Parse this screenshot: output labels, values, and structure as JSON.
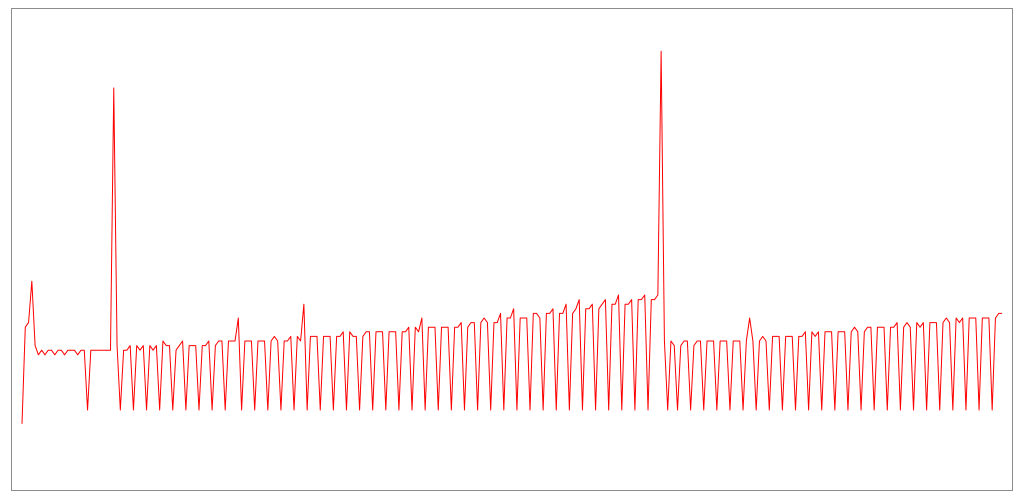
{
  "chart_data": {
    "type": "line",
    "title": "",
    "xlabel": "",
    "ylabel": "",
    "grid": false,
    "legend": "none",
    "ylim": [
      0,
      1
    ],
    "series_color": "#ff0000",
    "series": [
      {
        "x": [
          0,
          1,
          2,
          3,
          4,
          5,
          6,
          7,
          8,
          9,
          10,
          11,
          12,
          13,
          14,
          15,
          16,
          17,
          18,
          19,
          20,
          21,
          22,
          23,
          24,
          25,
          26,
          27,
          28,
          29,
          30,
          31,
          32,
          33,
          34,
          35,
          36,
          37,
          38,
          39,
          40,
          41,
          42,
          43,
          44,
          45,
          46,
          47,
          48,
          49,
          50,
          51,
          52,
          53,
          54,
          55,
          56,
          57,
          58,
          59,
          60,
          61,
          62,
          63,
          64,
          65,
          66,
          67,
          68,
          69,
          70,
          71,
          72,
          73,
          74,
          75,
          76,
          77,
          78,
          79,
          80,
          81,
          82,
          83,
          84,
          85,
          86,
          87,
          88,
          89,
          90,
          91,
          92,
          93,
          94,
          95,
          96,
          97,
          98,
          99,
          100,
          101,
          102,
          103,
          104,
          105,
          106,
          107,
          108,
          109,
          110,
          111,
          112,
          113,
          114,
          115,
          116,
          117,
          118,
          119,
          120,
          121,
          122,
          123,
          124,
          125,
          126,
          127,
          128,
          129,
          130,
          131,
          132,
          133,
          134,
          135,
          136,
          137,
          138,
          139,
          140,
          141,
          142,
          143,
          144,
          145,
          146,
          147,
          148,
          149,
          150,
          151,
          152,
          153,
          154,
          155,
          156,
          157,
          158,
          159,
          160,
          161,
          162,
          163,
          164,
          165,
          166,
          167,
          168,
          169,
          170,
          171,
          172,
          173,
          174,
          175,
          176,
          177,
          178,
          179,
          180,
          181,
          182,
          183,
          184,
          185,
          186,
          187,
          188,
          189,
          190,
          191,
          192,
          193,
          194,
          195,
          196,
          197,
          198,
          199,
          200,
          201,
          202,
          203,
          204,
          205,
          206,
          207,
          208,
          209,
          210,
          211,
          212,
          213,
          214,
          215,
          216,
          217,
          218,
          219,
          220,
          221,
          222,
          223,
          224,
          225,
          226,
          227,
          228,
          229,
          230,
          231,
          232,
          233,
          234,
          235,
          236,
          237,
          238,
          239,
          240,
          241,
          242,
          243,
          244,
          245,
          246,
          247,
          248,
          249,
          250,
          251,
          252,
          253,
          254,
          255,
          256,
          257,
          258,
          259,
          260,
          261,
          262,
          263,
          264,
          265,
          266,
          267,
          268,
          269,
          270,
          271,
          272,
          273,
          274,
          275,
          276,
          277,
          278,
          279,
          280,
          281,
          282,
          283,
          284,
          285,
          286,
          287,
          288,
          289,
          290,
          291,
          292,
          293,
          294,
          295,
          296,
          297,
          298,
          299
        ],
        "values": [
          0.12,
          0.33,
          0.34,
          0.43,
          0.29,
          0.27,
          0.28,
          0.27,
          0.28,
          0.28,
          0.27,
          0.28,
          0.28,
          0.27,
          0.28,
          0.28,
          0.28,
          0.27,
          0.28,
          0.28,
          0.15,
          0.28,
          0.28,
          0.28,
          0.28,
          0.28,
          0.28,
          0.28,
          0.85,
          0.29,
          0.15,
          0.28,
          0.28,
          0.29,
          0.15,
          0.29,
          0.28,
          0.29,
          0.15,
          0.29,
          0.28,
          0.29,
          0.15,
          0.3,
          0.29,
          0.29,
          0.15,
          0.28,
          0.29,
          0.3,
          0.15,
          0.29,
          0.29,
          0.29,
          0.15,
          0.29,
          0.29,
          0.3,
          0.15,
          0.29,
          0.3,
          0.3,
          0.15,
          0.3,
          0.3,
          0.3,
          0.35,
          0.15,
          0.3,
          0.3,
          0.3,
          0.15,
          0.3,
          0.3,
          0.3,
          0.15,
          0.3,
          0.31,
          0.3,
          0.15,
          0.3,
          0.3,
          0.31,
          0.15,
          0.31,
          0.3,
          0.38,
          0.15,
          0.31,
          0.31,
          0.31,
          0.15,
          0.31,
          0.31,
          0.31,
          0.15,
          0.31,
          0.31,
          0.32,
          0.15,
          0.32,
          0.31,
          0.31,
          0.15,
          0.31,
          0.32,
          0.32,
          0.15,
          0.32,
          0.32,
          0.32,
          0.15,
          0.32,
          0.32,
          0.32,
          0.15,
          0.32,
          0.32,
          0.33,
          0.15,
          0.33,
          0.32,
          0.35,
          0.15,
          0.33,
          0.33,
          0.33,
          0.15,
          0.33,
          0.33,
          0.33,
          0.15,
          0.33,
          0.33,
          0.34,
          0.15,
          0.33,
          0.34,
          0.34,
          0.15,
          0.34,
          0.35,
          0.34,
          0.15,
          0.34,
          0.34,
          0.36,
          0.15,
          0.35,
          0.35,
          0.37,
          0.15,
          0.35,
          0.35,
          0.35,
          0.15,
          0.36,
          0.36,
          0.35,
          0.15,
          0.36,
          0.36,
          0.37,
          0.15,
          0.36,
          0.36,
          0.38,
          0.15,
          0.36,
          0.37,
          0.39,
          0.15,
          0.37,
          0.37,
          0.38,
          0.15,
          0.37,
          0.38,
          0.39,
          0.15,
          0.38,
          0.38,
          0.4,
          0.15,
          0.38,
          0.38,
          0.39,
          0.15,
          0.39,
          0.39,
          0.4,
          0.15,
          0.39,
          0.39,
          0.4,
          0.93,
          0.3,
          0.15,
          0.3,
          0.29,
          0.15,
          0.29,
          0.3,
          0.3,
          0.15,
          0.29,
          0.3,
          0.3,
          0.15,
          0.3,
          0.3,
          0.3,
          0.15,
          0.3,
          0.3,
          0.3,
          0.15,
          0.3,
          0.3,
          0.3,
          0.15,
          0.3,
          0.35,
          0.3,
          0.15,
          0.3,
          0.31,
          0.3,
          0.15,
          0.31,
          0.31,
          0.31,
          0.15,
          0.31,
          0.31,
          0.31,
          0.15,
          0.31,
          0.31,
          0.32,
          0.15,
          0.32,
          0.31,
          0.32,
          0.15,
          0.32,
          0.32,
          0.32,
          0.15,
          0.32,
          0.32,
          0.32,
          0.15,
          0.32,
          0.33,
          0.32,
          0.15,
          0.32,
          0.33,
          0.33,
          0.15,
          0.33,
          0.33,
          0.33,
          0.15,
          0.33,
          0.33,
          0.34,
          0.15,
          0.33,
          0.34,
          0.33,
          0.15,
          0.34,
          0.33,
          0.34,
          0.15,
          0.34,
          0.34,
          0.34,
          0.15,
          0.34,
          0.35,
          0.34,
          0.15,
          0.35,
          0.34,
          0.35,
          0.15,
          0.35,
          0.35,
          0.35,
          0.15,
          0.35,
          0.35,
          0.35,
          0.15,
          0.35,
          0.36,
          0.36
        ]
      }
    ]
  }
}
